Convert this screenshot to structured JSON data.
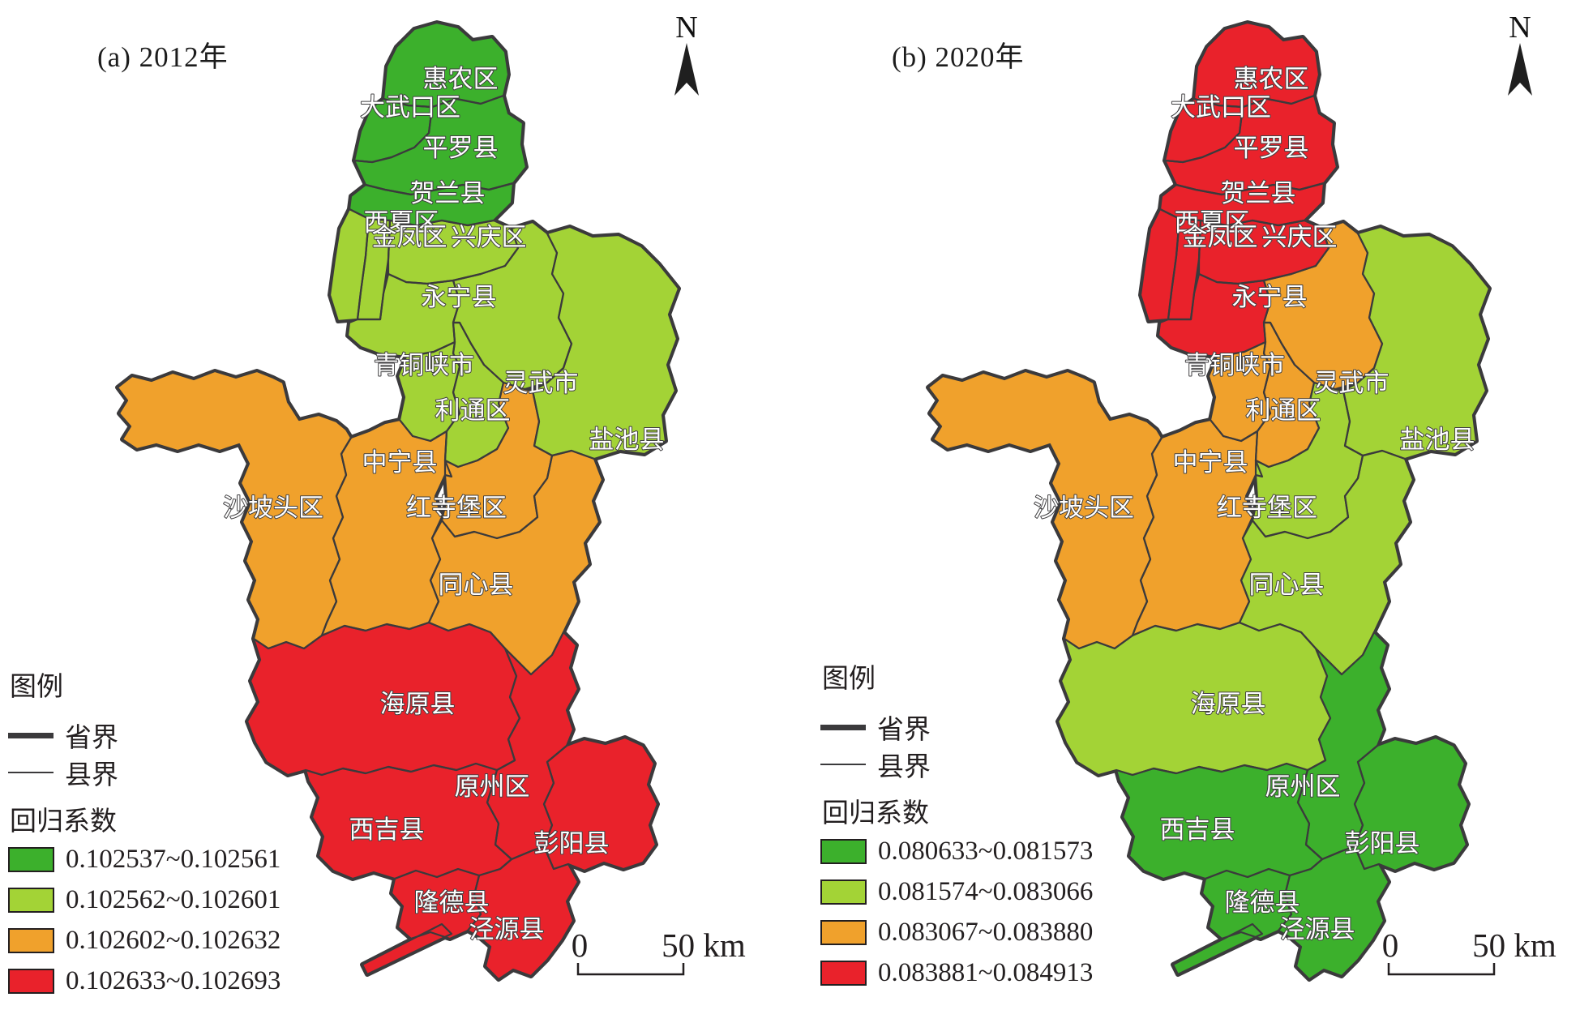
{
  "figure": {
    "boundary_color": "#3b3a3c",
    "counties": [
      "惠农区",
      "大武口区",
      "平罗县",
      "贺兰县",
      "西夏区",
      "金凤区",
      "兴庆区",
      "永宁县",
      "灵武市",
      "盐池县",
      "青铜峡市",
      "利通区",
      "中宁县",
      "沙坡头区",
      "红寺堡区",
      "同心县",
      "海原县",
      "原州区",
      "彭阳县",
      "西吉县",
      "隆德县",
      "泾源县"
    ],
    "panels": [
      {
        "id": "a",
        "title": "(a) 2012年",
        "north_label": "N",
        "scale_bar": {
          "zero": "0",
          "distance": "50 km"
        },
        "legend": {
          "header": "图例",
          "line_items": [
            {
              "label": "省界",
              "type": "thick"
            },
            {
              "label": "县界",
              "type": "thin"
            }
          ],
          "class_header": "回归系数",
          "classes": [
            {
              "range": "0.102537~0.102561",
              "color": "#3cb02c"
            },
            {
              "range": "0.102562~0.102601",
              "color": "#a3d336"
            },
            {
              "range": "0.102602~0.102632",
              "color": "#f0a12c"
            },
            {
              "range": "0.102633~0.102693",
              "color": "#e9222b"
            }
          ]
        },
        "county_classes": {
          "惠农区": 0,
          "大武口区": 0,
          "平罗县": 0,
          "贺兰县": 0,
          "西夏区": 1,
          "金凤区": 1,
          "兴庆区": 1,
          "永宁县": 1,
          "灵武市": 1,
          "盐池县": 1,
          "青铜峡市": 1,
          "利通区": 1,
          "中宁县": 2,
          "沙坡头区": 2,
          "红寺堡区": 2,
          "同心县": 2,
          "海原县": 3,
          "原州区": 3,
          "彭阳县": 3,
          "西吉县": 3,
          "隆德县": 3,
          "泾源县": 3
        }
      },
      {
        "id": "b",
        "title": "(b) 2020年",
        "north_label": "N",
        "scale_bar": {
          "zero": "0",
          "distance": "50 km"
        },
        "legend": {
          "header": "图例",
          "line_items": [
            {
              "label": "省界",
              "type": "thick"
            },
            {
              "label": "县界",
              "type": "thin"
            }
          ],
          "class_header": "回归系数",
          "classes": [
            {
              "range": "0.080633~0.081573",
              "color": "#3cb02c"
            },
            {
              "range": "0.081574~0.083066",
              "color": "#a3d336"
            },
            {
              "range": "0.083067~0.083880",
              "color": "#f0a12c"
            },
            {
              "range": "0.083881~0.084913",
              "color": "#e9222b"
            }
          ]
        },
        "county_classes": {
          "惠农区": 3,
          "大武口区": 3,
          "平罗县": 3,
          "贺兰县": 3,
          "西夏区": 3,
          "金凤区": 3,
          "兴庆区": 3,
          "永宁县": 3,
          "灵武市": 2,
          "青铜峡市": 2,
          "利通区": 2,
          "中宁县": 2,
          "沙坡头区": 2,
          "盐池县": 1,
          "红寺堡区": 1,
          "同心县": 1,
          "海原县": 1,
          "原州区": 0,
          "西吉县": 0,
          "彭阳县": 0,
          "隆德县": 0,
          "泾源县": 0
        }
      }
    ]
  }
}
